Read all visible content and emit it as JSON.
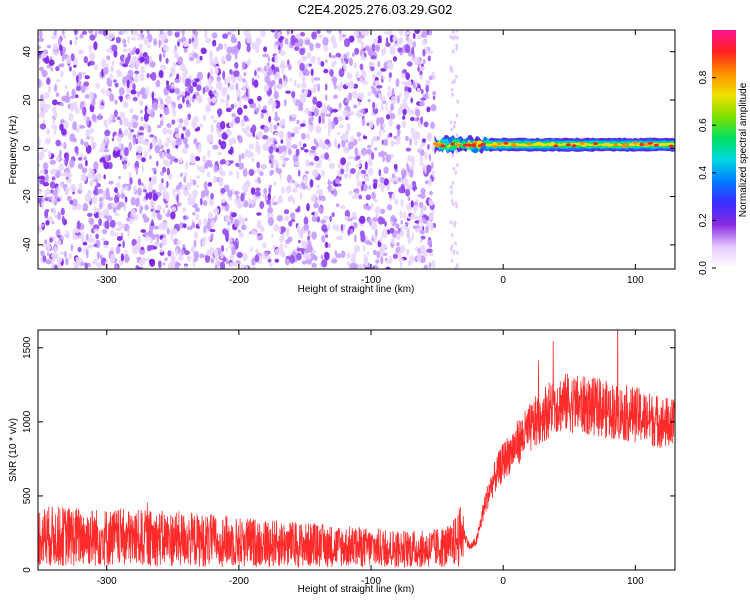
{
  "title": "C2E4.2025.276.03.29.G02",
  "chart_data": [
    {
      "type": "heatmap",
      "xlabel": "Height of straight line (km)",
      "ylabel": "Frequency (Hz)",
      "xlim": [
        -352,
        130
      ],
      "ylim": [
        -50,
        49
      ],
      "xticks": [
        "-300",
        "-200",
        "-100",
        "0",
        "100"
      ],
      "yticks": [
        "-40",
        "-20",
        "0",
        "20",
        "40"
      ],
      "colorbar": {
        "label": "Normalized spectral amplitude",
        "range": [
          0,
          1
        ],
        "ticks": [
          "0.0",
          "0.2",
          "0.4",
          "0.6",
          "0.8"
        ],
        "colors": [
          "#ffffff",
          "#e6c8ff",
          "#8a2be2",
          "#3a2cff",
          "#0078ff",
          "#00d8e0",
          "#00e060",
          "#80e000",
          "#f0e000",
          "#ff9000",
          "#ff2020",
          "#ff1493"
        ]
      },
      "features": [
        {
          "region": "noise",
          "x_range": [
            -352,
            -52
          ],
          "freq_range": [
            -50,
            49
          ],
          "max_amplitude": 0.25
        },
        {
          "region": "signal",
          "x_range": [
            -52,
            130
          ],
          "freq_center": 1.5,
          "freq_halfwidth": 2.5,
          "max_amplitude": 0.85
        }
      ],
      "grid": false
    },
    {
      "type": "line",
      "xlabel": "Height of straight line (km)",
      "ylabel": "SNR (10 * v/v)",
      "xlim": [
        -352,
        130
      ],
      "ylim": [
        0,
        1620
      ],
      "xticks": [
        "-300",
        "-200",
        "-100",
        "0",
        "100"
      ],
      "yticks": [
        "0",
        "500",
        "1000",
        "1500"
      ],
      "series": [
        {
          "color": "#ff2a2a",
          "x": [
            -350,
            -300,
            -250,
            -200,
            -150,
            -100,
            -60,
            -40,
            -30,
            -25,
            -20,
            -15,
            -10,
            -5,
            0,
            10,
            20,
            30,
            40,
            50,
            60,
            70,
            80,
            90,
            100,
            110,
            120,
            130
          ],
          "y": [
            230,
            220,
            210,
            190,
            170,
            150,
            140,
            160,
            250,
            150,
            200,
            400,
            550,
            650,
            730,
            850,
            950,
            1050,
            1120,
            1130,
            1110,
            1100,
            1080,
            1060,
            1050,
            1020,
            1000,
            980
          ]
        }
      ],
      "grid": false
    }
  ]
}
